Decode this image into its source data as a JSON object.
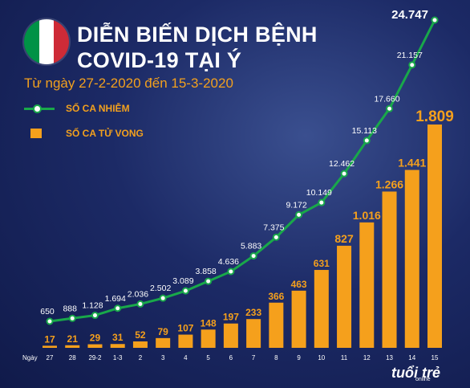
{
  "header": {
    "title_line1": "DIỄN BIẾN DỊCH BỆNH",
    "title_line2": "COVID-19 TẠI Ý",
    "subtitle": "Từ ngày 27-2-2020 đến 15-3-2020"
  },
  "legend": {
    "cases_label": "SỐ CA NHIỄM",
    "deaths_label": "SỐ CA TỬ VONG"
  },
  "logo": {
    "text": "tuổi trẻ",
    "sub": "online"
  },
  "colors": {
    "line": "#19a84a",
    "bar": "#f5a01c",
    "label": "#ffffff",
    "bar_label": "#f5a01c",
    "flag_green": "#009246",
    "flag_white": "#ffffff",
    "flag_red": "#ce2b37"
  },
  "chart_data": {
    "type": "bar",
    "x_axis_title": "Ngày",
    "categories": [
      "27",
      "28",
      "29-2",
      "1-3",
      "2",
      "3",
      "4",
      "5",
      "6",
      "7",
      "8",
      "9",
      "10",
      "11",
      "12",
      "13",
      "14",
      "15"
    ],
    "series": [
      {
        "name": "SỐ CA NHIỄM",
        "type": "line",
        "values": [
          650,
          888,
          1128,
          1694,
          2036,
          2502,
          3089,
          3858,
          4636,
          5883,
          7375,
          9172,
          10149,
          12462,
          15113,
          17660,
          21157,
          24747
        ],
        "labels": [
          "650",
          "888",
          "1.128",
          "1.694",
          "2.036",
          "2.502",
          "3.089",
          "3.858",
          "4.636",
          "5.883",
          "7.375",
          "9.172",
          "10.149",
          "12.462",
          "15.113",
          "17.660",
          "21.157",
          "24.747"
        ]
      },
      {
        "name": "SỐ CA TỬ VONG",
        "type": "bar",
        "values": [
          17,
          21,
          29,
          31,
          52,
          79,
          107,
          148,
          197,
          233,
          366,
          463,
          631,
          827,
          1016,
          1266,
          1441,
          1809
        ],
        "labels": [
          "17",
          "21",
          "29",
          "31",
          "52",
          "79",
          "107",
          "148",
          "197",
          "233",
          "366",
          "463",
          "631",
          "827",
          "1.016",
          "1.266",
          "1.441",
          "1.809"
        ]
      }
    ],
    "grid": false
  }
}
